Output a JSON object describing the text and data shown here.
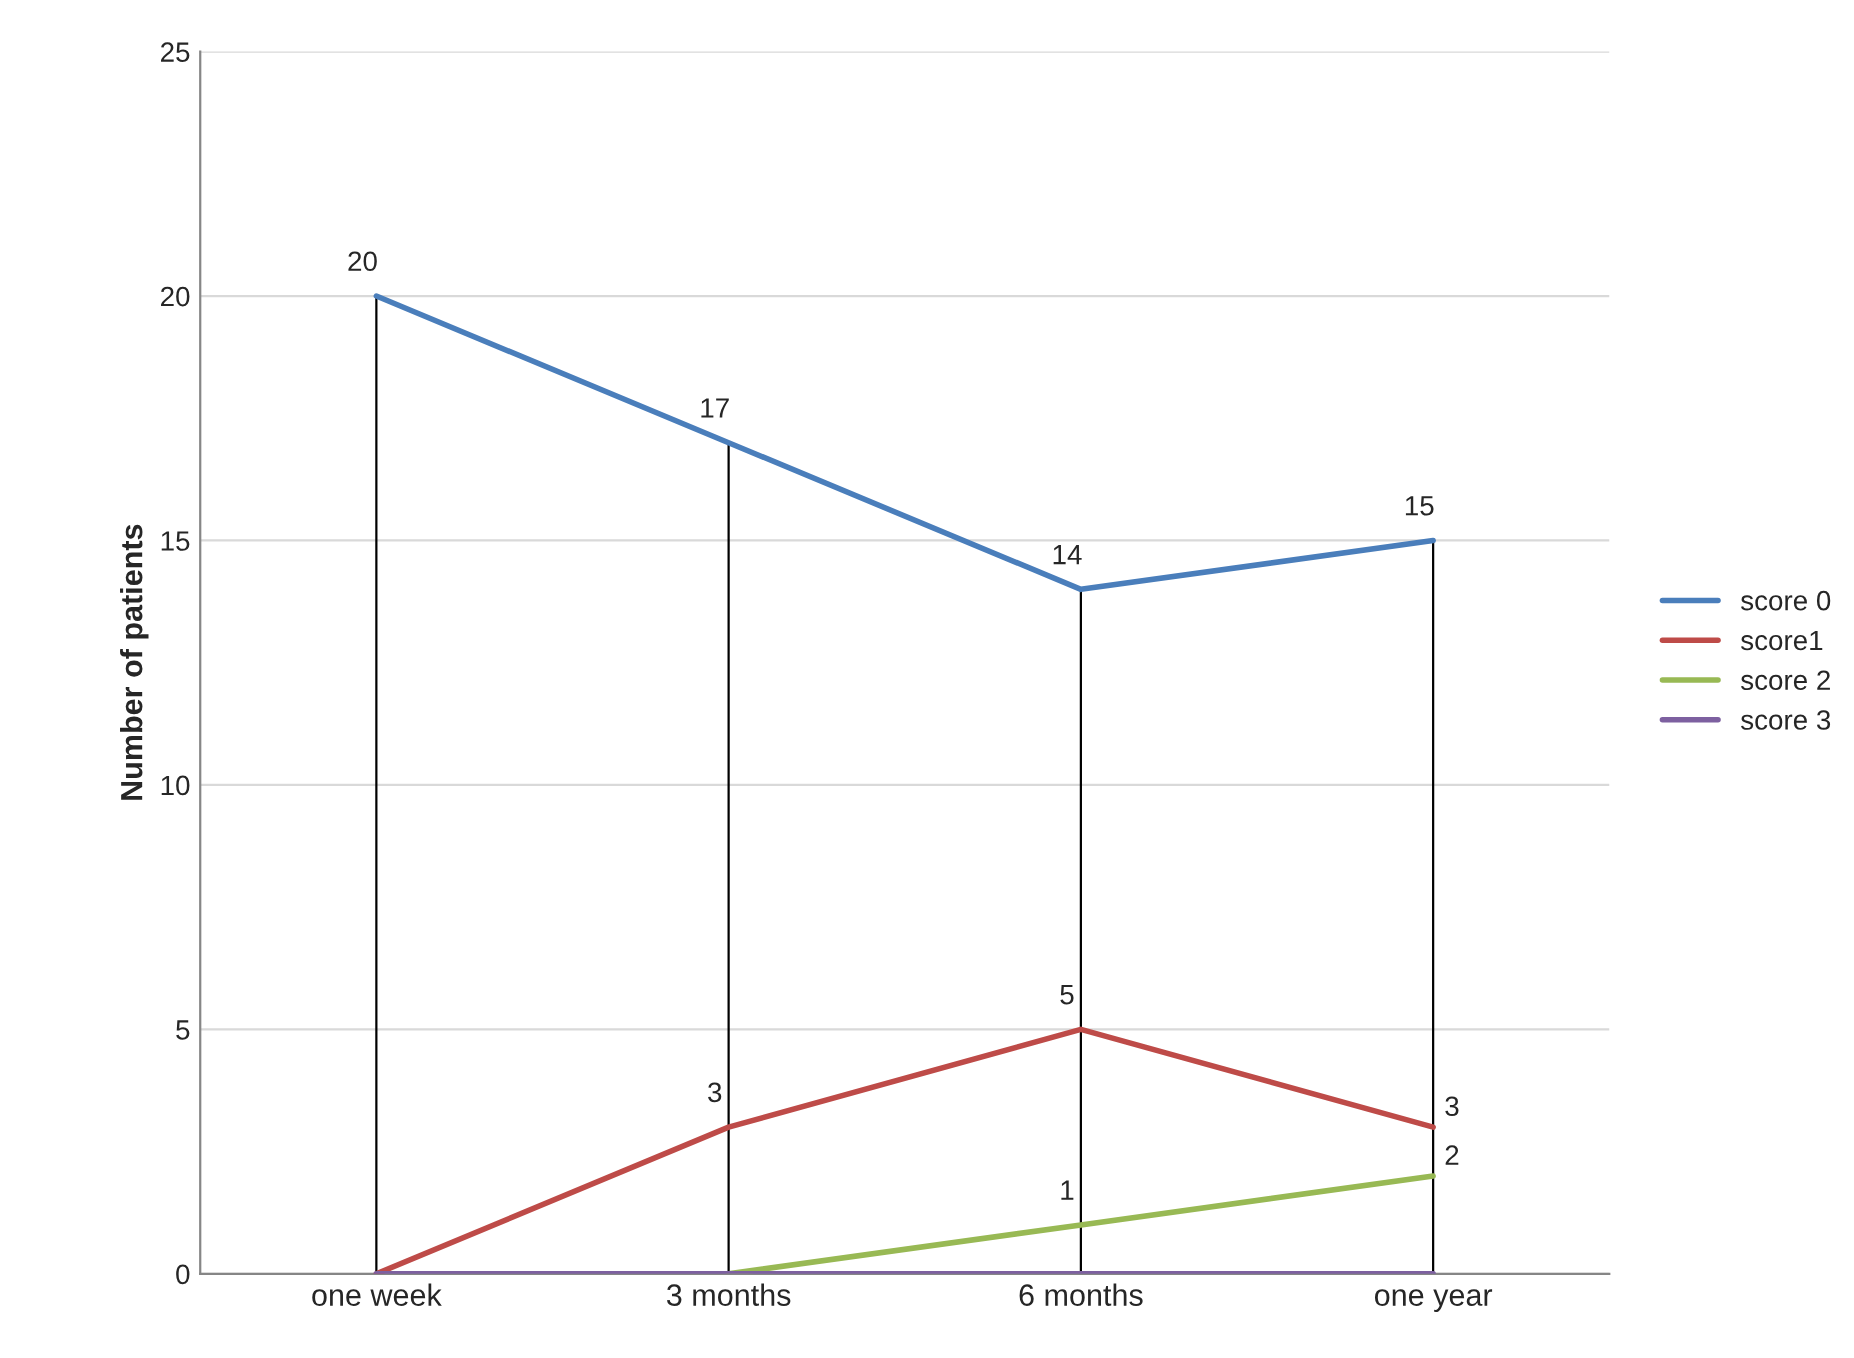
{
  "chart_data": {
    "type": "line",
    "ylabel": "Number of patients",
    "categories": [
      "one week",
      "3 months",
      "6 months",
      "one year"
    ],
    "series": [
      {
        "name": "score 0",
        "color": "#4a7ebb",
        "values": [
          20,
          17,
          14,
          15
        ],
        "value_labels": [
          "20",
          "17",
          "14",
          "15"
        ]
      },
      {
        "name": "score1",
        "color": "#be4b48",
        "values": [
          0,
          3,
          5,
          3
        ],
        "value_labels": [
          null,
          "3",
          "5",
          "3"
        ]
      },
      {
        "name": "score 2",
        "color": "#98b954",
        "values": [
          null,
          0,
          1,
          2
        ],
        "value_labels": [
          null,
          null,
          "1",
          "2"
        ]
      },
      {
        "name": "score 3",
        "color": "#7d60a0",
        "values": [
          0,
          0,
          0,
          0
        ]
      }
    ],
    "ylim": [
      0,
      25
    ],
    "yticks": [
      0,
      5,
      10,
      15,
      20,
      25
    ],
    "grid": "y",
    "legend": "right",
    "marker": "none",
    "line_style": "solid",
    "ref_lines": [
      {
        "axis": "x",
        "value": "one week",
        "color": "#000000"
      },
      {
        "axis": "x",
        "value": "3 months",
        "color": "#000000"
      },
      {
        "axis": "x",
        "value": "6 months",
        "color": "#000000"
      },
      {
        "axis": "x",
        "value": "one year",
        "color": "#000000"
      }
    ]
  }
}
